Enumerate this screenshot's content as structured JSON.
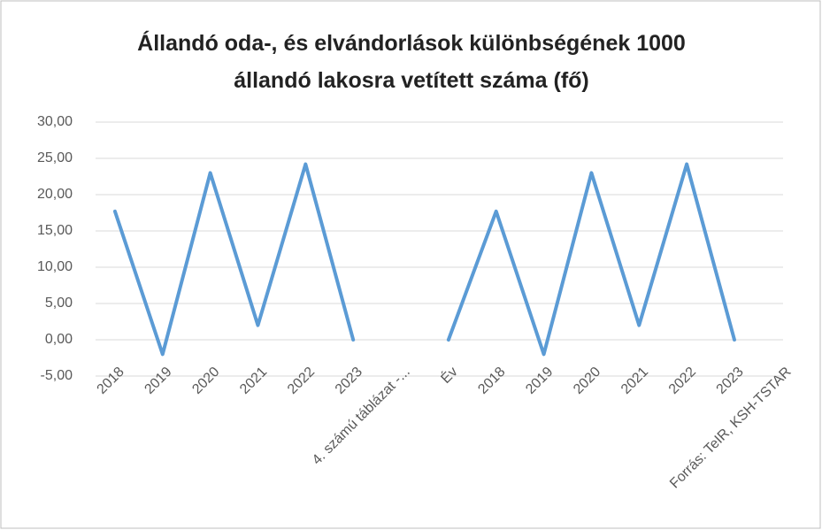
{
  "chart_data": {
    "type": "line",
    "title": "Állandó oda-, és elvándorlások különbségének 1000 állandó lakosra vetített száma (fő)",
    "categories": [
      "2018",
      "2019",
      "2020",
      "2021",
      "2022",
      "2023",
      "4. számú táblázat -...",
      "Év",
      "2018",
      "2019",
      "2020",
      "2021",
      "2022",
      "2023",
      "Forrás: TeIR, KSH-TSTAR"
    ],
    "series": [
      {
        "color": "#5b9bd5",
        "values": [
          17.7,
          -2,
          23,
          2,
          24.2,
          0,
          null,
          0,
          17.7,
          -2,
          23,
          2,
          24.2,
          0,
          null
        ]
      }
    ],
    "ylim": [
      -5,
      30
    ],
    "yticks": [
      {
        "value": -5,
        "label": "-5,00"
      },
      {
        "value": 0,
        "label": "0,00"
      },
      {
        "value": 5,
        "label": "5,00"
      },
      {
        "value": 10,
        "label": "10,00"
      },
      {
        "value": 15,
        "label": "15,00"
      },
      {
        "value": 20,
        "label": "20,00"
      },
      {
        "value": 25,
        "label": "25,00"
      },
      {
        "value": 30,
        "label": "30,00"
      }
    ],
    "grid": true
  }
}
